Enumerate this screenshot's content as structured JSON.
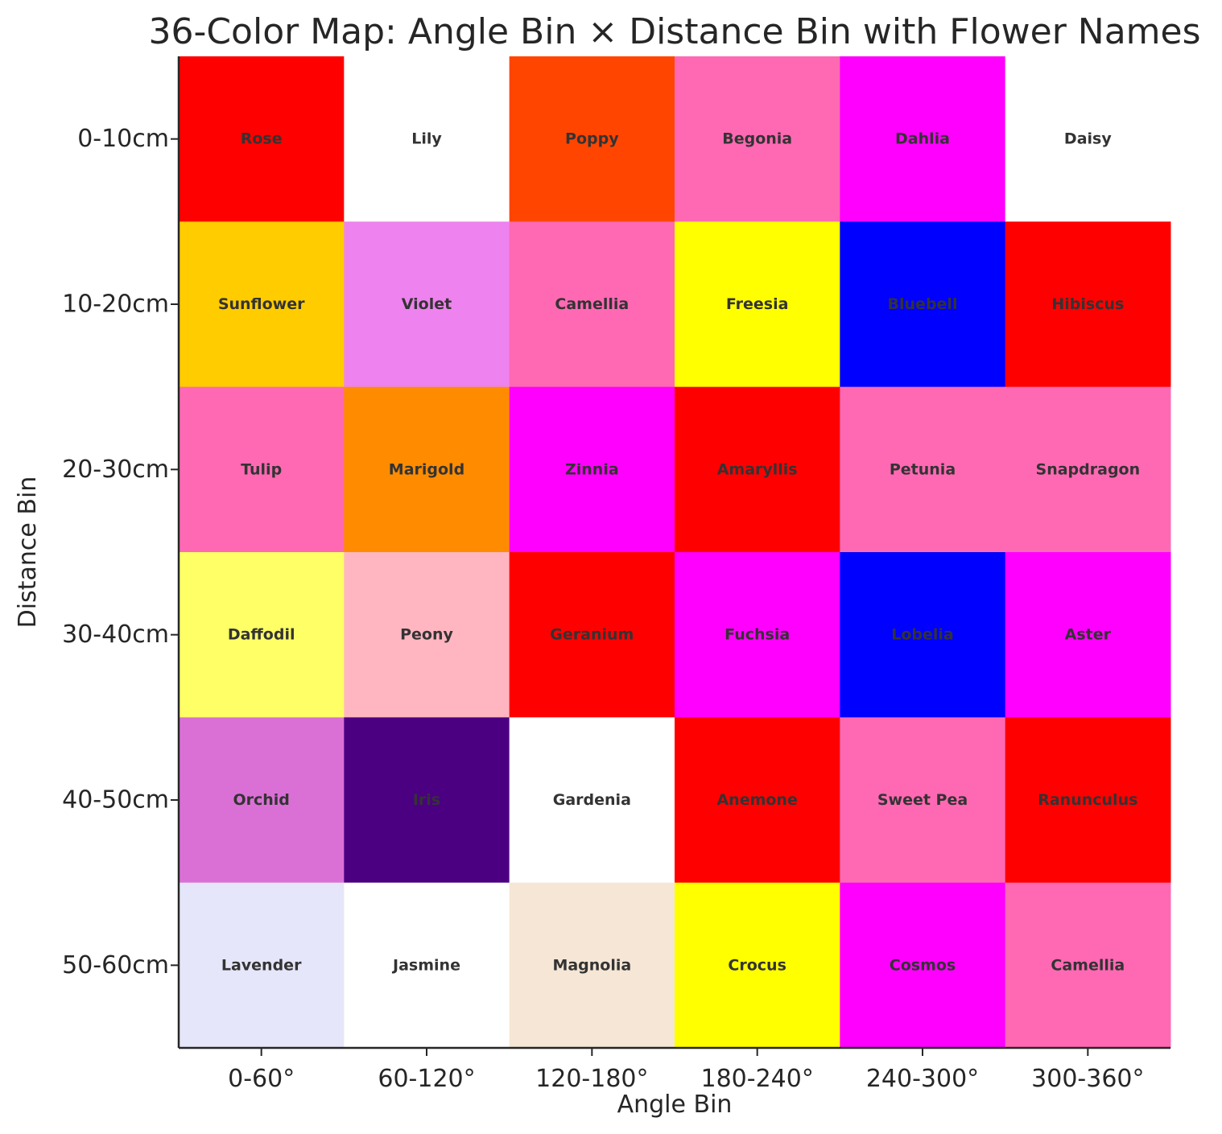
{
  "chart_data": {
    "type": "heatmap",
    "title": "36-Color Map: Angle Bin × Distance Bin with Flower Names",
    "xlabel": "Angle Bin",
    "ylabel": "Distance Bin",
    "x_categories": [
      "0-60°",
      "60-120°",
      "120-180°",
      "180-240°",
      "240-300°",
      "300-360°"
    ],
    "y_categories": [
      "0-10cm",
      "10-20cm",
      "20-30cm",
      "30-40cm",
      "40-50cm",
      "50-60cm"
    ],
    "grid": false,
    "cells": [
      [
        {
          "name": "Rose",
          "color": "#FF0000"
        },
        {
          "name": "Lily",
          "color": "#FFFFFF"
        },
        {
          "name": "Poppy",
          "color": "#FF4500"
        },
        {
          "name": "Begonia",
          "color": "#FF69B4"
        },
        {
          "name": "Dahlia",
          "color": "#FF00FF"
        },
        {
          "name": "Daisy",
          "color": "#FFFFFF"
        }
      ],
      [
        {
          "name": "Sunflower",
          "color": "#FFCC00"
        },
        {
          "name": "Violet",
          "color": "#EE82EE"
        },
        {
          "name": "Camellia",
          "color": "#FF69B4"
        },
        {
          "name": "Freesia",
          "color": "#FFFF00"
        },
        {
          "name": "Bluebell",
          "color": "#0000FF"
        },
        {
          "name": "Hibiscus",
          "color": "#FF0000"
        }
      ],
      [
        {
          "name": "Tulip",
          "color": "#FF69B4"
        },
        {
          "name": "Marigold",
          "color": "#FF8C00"
        },
        {
          "name": "Zinnia",
          "color": "#FF00FF"
        },
        {
          "name": "Amaryllis",
          "color": "#FF0000"
        },
        {
          "name": "Petunia",
          "color": "#FF69B4"
        },
        {
          "name": "Snapdragon",
          "color": "#FF69B4"
        }
      ],
      [
        {
          "name": "Daffodil",
          "color": "#FFFF66"
        },
        {
          "name": "Peony",
          "color": "#FFB6C1"
        },
        {
          "name": "Geranium",
          "color": "#FF0000"
        },
        {
          "name": "Fuchsia",
          "color": "#FF00FF"
        },
        {
          "name": "Lobelia",
          "color": "#0000FF"
        },
        {
          "name": "Aster",
          "color": "#FF00FF"
        }
      ],
      [
        {
          "name": "Orchid",
          "color": "#DA70D6"
        },
        {
          "name": "Iris",
          "color": "#4B0082"
        },
        {
          "name": "Gardenia",
          "color": "#FFFFFF"
        },
        {
          "name": "Anemone",
          "color": "#FF0000"
        },
        {
          "name": "Sweet Pea",
          "color": "#FF69B4"
        },
        {
          "name": "Ranunculus",
          "color": "#FF0000"
        }
      ],
      [
        {
          "name": "Lavender",
          "color": "#E6E6FA"
        },
        {
          "name": "Jasmine",
          "color": "#FFFFFF"
        },
        {
          "name": "Magnolia",
          "color": "#F5E6D6"
        },
        {
          "name": "Crocus",
          "color": "#FFFF00"
        },
        {
          "name": "Cosmos",
          "color": "#FF00FF"
        },
        {
          "name": "Camellia",
          "color": "#FF69B4"
        }
      ]
    ]
  }
}
